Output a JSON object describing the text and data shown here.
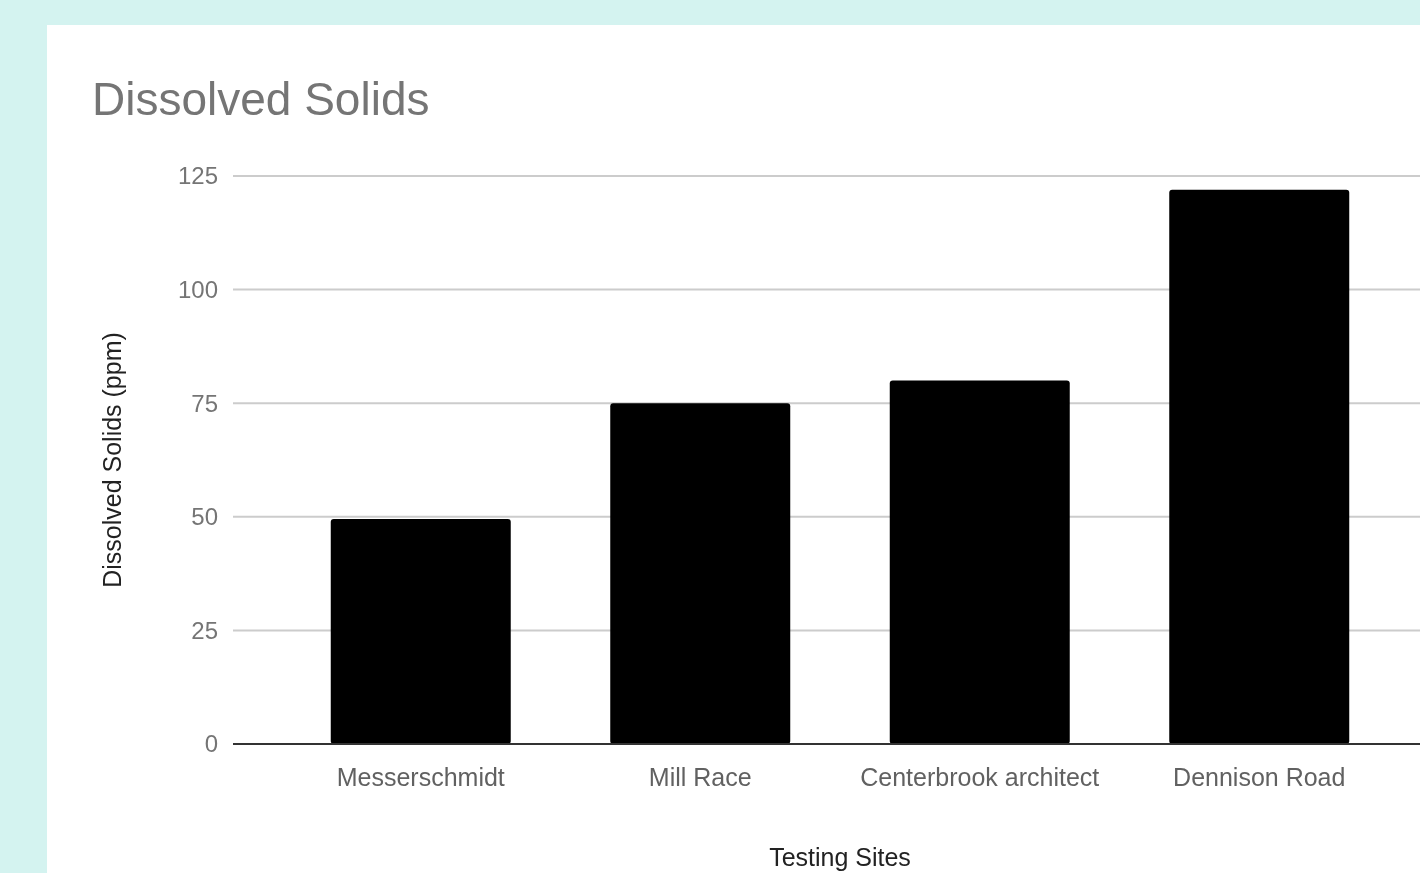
{
  "chart_data": {
    "type": "bar",
    "title": "Dissolved Solids",
    "xlabel": "Testing Sites",
    "ylabel": "Dissolved Solids (ppm)",
    "categories": [
      "Messerschmidt",
      "Mill Race",
      "Centerbrook architect",
      "Dennison Road"
    ],
    "values": [
      49.5,
      75,
      80,
      122
    ],
    "color": "#000000",
    "ylim": [
      0,
      125
    ],
    "yticks": [
      0,
      25,
      50,
      75,
      100,
      125
    ],
    "grid": true
  }
}
